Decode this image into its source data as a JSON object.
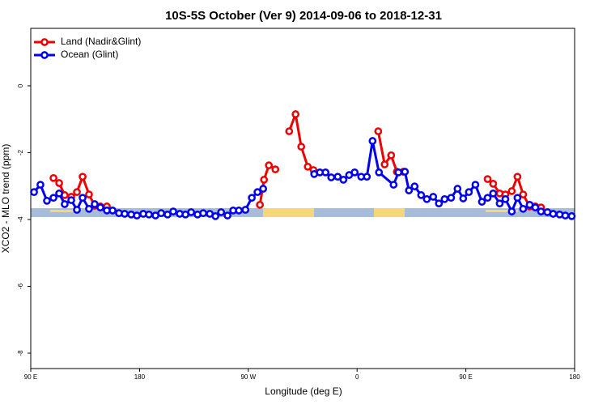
{
  "chart_data": {
    "type": "line",
    "title": "10S-5S October (Ver 9)   2014-09-06 to 2018-12-31",
    "x_label": "Longitude (deg E)",
    "y_label": "XCO2 - MLO trend (ppm)",
    "xlim": [
      90,
      540
    ],
    "xticks": [
      {
        "value": 90,
        "label": "90 E"
      },
      180,
      {
        "value": 270,
        "label": "90 W"
      },
      {
        "value": 360,
        "label": "0"
      },
      {
        "value": 450,
        "label": "90 E"
      },
      {
        "value": 540,
        "label": "180"
      }
    ],
    "ylim": [
      -8.46,
      1.72
    ],
    "yticks": [
      0,
      -2,
      -4,
      -6,
      -8
    ],
    "legend": "top-left",
    "series": [
      {
        "name": "Land (Nadir&Glint)",
        "color": "#ee0000",
        "x": [
          108.8,
          113.5,
          118.1,
          123.5,
          128.2,
          132.9,
          138.2,
          142.9,
          147.6,
          153.0,
          200,
          279.6,
          283.0,
          287.0,
          292.4,
          298,
          303.8,
          309.1,
          313.8,
          319.2,
          323.9,
          350,
          377.5,
          382.8,
          388.2,
          392.9,
          398.2,
          430,
          468.0,
          472.6,
          478.0,
          482.7,
          488.0,
          492.7,
          497.4,
          502.8,
          507.5,
          512.2
        ],
        "values": [
          -2.76,
          -2.91,
          -3.27,
          -3.32,
          -3.18,
          -2.72,
          -3.25,
          -3.59,
          -3.61,
          -3.61,
          null,
          -3.56,
          -2.81,
          -2.38,
          -2.5,
          null,
          -1.36,
          -0.85,
          -1.82,
          -2.42,
          -2.52,
          null,
          -1.36,
          -2.35,
          -2.08,
          -2.57,
          -2.57,
          null,
          -2.79,
          -2.93,
          -3.22,
          -3.25,
          -3.15,
          -2.72,
          -3.25,
          -3.61,
          -3.61,
          -3.64
        ]
      },
      {
        "name": "Ocean (Glint)",
        "color": "#0000ee",
        "x": [
          92.7,
          98.0,
          103.4,
          108.8,
          113.5,
          118.1,
          123.5,
          128.2,
          132.9,
          138.2,
          142.9,
          147.6,
          153.0,
          157.7,
          163.0,
          167.7,
          173.1,
          177.8,
          183.1,
          187.8,
          193.2,
          197.9,
          203.2,
          207.9,
          213.3,
          218.0,
          222.7,
          228.0,
          232.7,
          238.1,
          242.8,
          247.5,
          252.8,
          257.5,
          262.2,
          267.6,
          272.9,
          277.6,
          282.3,
          300,
          324.5,
          329.2,
          333.9,
          338.6,
          344.0,
          348.7,
          353.4,
          358.0,
          363.4,
          368.1,
          372.8,
          378.1,
          390.2,
          394.2,
          399.6,
          402.9,
          407.6,
          413.0,
          417.7,
          423.0,
          427.7,
          432.4,
          437.8,
          443.1,
          447.8,
          452.5,
          457.9,
          463.3,
          468.0,
          472.6,
          478.0,
          482.7,
          488.0,
          492.7,
          497.4,
          502.8,
          507.5,
          512.2,
          517.5,
          522.2,
          527.6,
          532.3,
          537.6
        ],
        "values": [
          -3.18,
          -2.96,
          -3.44,
          -3.35,
          -3.22,
          -3.54,
          -3.42,
          -3.71,
          -3.35,
          -3.68,
          -3.54,
          -3.64,
          -3.73,
          -3.73,
          -3.81,
          -3.83,
          -3.85,
          -3.88,
          -3.83,
          -3.85,
          -3.88,
          -3.81,
          -3.85,
          -3.76,
          -3.83,
          -3.85,
          -3.78,
          -3.85,
          -3.81,
          -3.83,
          -3.9,
          -3.78,
          -3.88,
          -3.73,
          -3.73,
          -3.71,
          -3.35,
          -3.18,
          -3.08,
          null,
          -2.64,
          -2.59,
          -2.59,
          -2.74,
          -2.72,
          -2.81,
          -2.67,
          -2.59,
          -2.72,
          -2.72,
          -1.65,
          -2.59,
          -2.96,
          -2.59,
          -2.57,
          -3.13,
          -3.01,
          -3.27,
          -3.39,
          -3.32,
          -3.52,
          -3.39,
          -3.35,
          -3.08,
          -3.37,
          -3.18,
          -2.96,
          -3.47,
          -3.35,
          -3.22,
          -3.52,
          -3.39,
          -3.76,
          -3.35,
          -3.68,
          -3.56,
          -3.64,
          -3.76,
          -3.78,
          -3.83,
          -3.85,
          -3.88,
          -3.9
        ]
      }
    ]
  }
}
